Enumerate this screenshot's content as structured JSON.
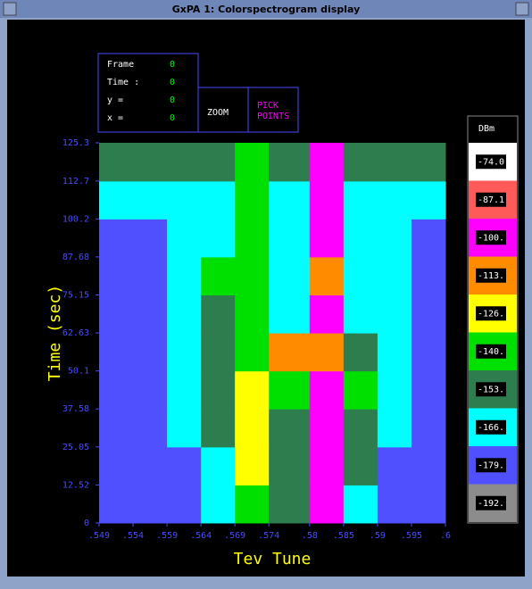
{
  "window": {
    "title": "GxPA 1: Colorspectrogram display"
  },
  "info": [
    {
      "label": "Frame",
      "value": 0
    },
    {
      "label": "Time :",
      "value": 0
    },
    {
      "label": "y =",
      "value": 0
    },
    {
      "label": "x =",
      "value": 0
    }
  ],
  "buttons": [
    "ZOOM",
    "PICK POINTS"
  ],
  "plot": {
    "xlabel": "Tev Tune",
    "ylabel": "Time (sec)",
    "xticks": [
      {
        "value": 0.549,
        "label": ".549"
      },
      {
        "value": 0.554,
        "label": ".554"
      },
      {
        "value": 0.559,
        "label": ".559"
      },
      {
        "value": 0.564,
        "label": ".564"
      },
      {
        "value": 0.569,
        "label": ".569"
      },
      {
        "value": 0.574,
        "label": ".574"
      },
      {
        "value": 0.58,
        "label": ".58"
      },
      {
        "value": 0.585,
        "label": ".585"
      },
      {
        "value": 0.59,
        "label": ".59"
      },
      {
        "value": 0.595,
        "label": ".595"
      },
      {
        "value": 0.6,
        "label": ".6"
      }
    ],
    "yticks": [
      0,
      12.52,
      25.05,
      37.58,
      50.1,
      62.63,
      75.15,
      87.68,
      100.2,
      112.7,
      125.3
    ],
    "z": [
      [
        -170,
        -168,
        -168,
        -160,
        -128,
        -150,
        -98,
        -160,
        -168,
        -170
      ],
      [
        -170,
        -168,
        -168,
        -155,
        -125,
        -150,
        -96,
        -150,
        -168,
        -170
      ],
      [
        -168,
        -168,
        -166,
        -150,
        -122,
        -148,
        -95,
        -145,
        -166,
        -168
      ],
      [
        -168,
        -168,
        -166,
        -152,
        -124,
        -140,
        -100,
        -135,
        -166,
        -168
      ],
      [
        -168,
        -168,
        -166,
        -150,
        -128,
        -105,
        -102,
        -150,
        -166,
        -168
      ],
      [
        -168,
        -168,
        -165,
        -145,
        -135,
        -160,
        -100,
        -160,
        -166,
        -168
      ],
      [
        -168,
        -168,
        -165,
        -140,
        -130,
        -162,
        -102,
        -160,
        -166,
        -168
      ],
      [
        -168,
        -168,
        -165,
        -155,
        -130,
        -158,
        -100,
        -158,
        -166,
        -168
      ],
      [
        -160,
        -160,
        -160,
        -158,
        -130,
        -155,
        -98,
        -155,
        -158,
        -160
      ],
      [
        -150,
        -150,
        -150,
        -150,
        -128,
        -148,
        -97,
        -148,
        -150,
        -150
      ]
    ]
  },
  "colorbar": {
    "title": "DBm",
    "levels": [
      {
        "value": -74,
        "label": "-74.0"
      },
      -87.1,
      {
        "value": -100,
        "label": "-100."
      },
      {
        "value": -113,
        "label": "-113."
      },
      {
        "value": -126,
        "label": "-126."
      },
      {
        "value": -140,
        "label": "-140."
      },
      {
        "value": -153,
        "label": "-153."
      },
      {
        "value": -166,
        "label": "-166."
      },
      {
        "value": -179,
        "label": "-179."
      },
      {
        "value": -192,
        "label": "-192."
      }
    ],
    "colors": [
      "#ffffff",
      "#ff5a5a",
      "#ff00ff",
      "#ff8c00",
      "#ffff00",
      "#00e000",
      "#2e7d4f",
      "#00ffff",
      "#5050ff",
      "#8c8c8c"
    ]
  }
}
